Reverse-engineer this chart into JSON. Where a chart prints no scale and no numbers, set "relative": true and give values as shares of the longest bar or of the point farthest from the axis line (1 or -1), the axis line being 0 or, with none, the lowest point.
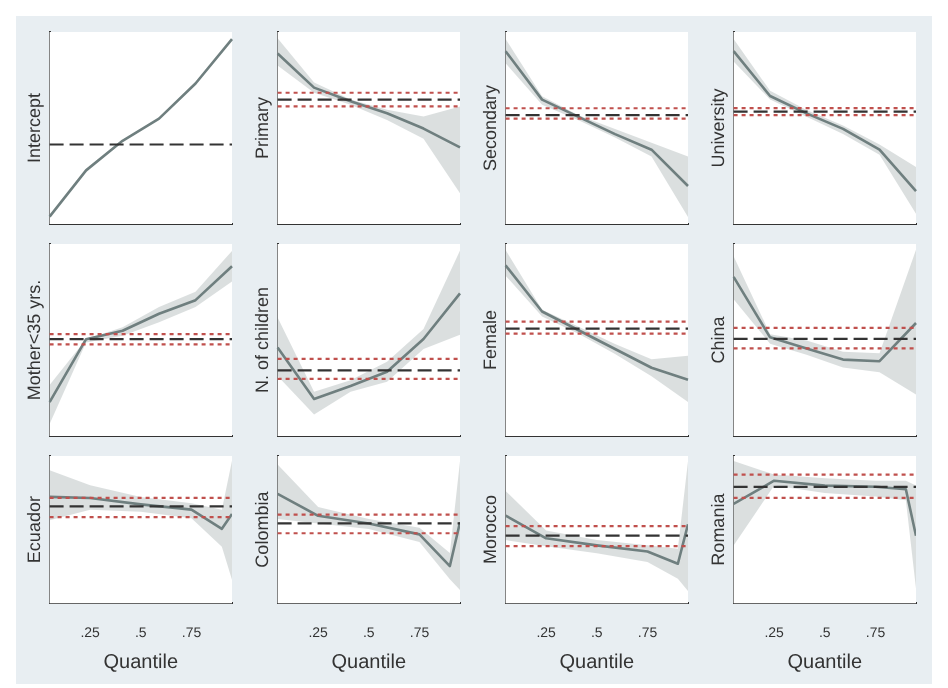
{
  "chart_data": [
    {
      "type": "line",
      "relative": true,
      "ylabel": "Intercept",
      "categories": [
        null,
        null,
        null,
        null,
        null,
        null
      ],
      "tick_labels": false,
      "series": [
        {
          "color": "#6f7f7f",
          "values": [
            0.04,
            0.29,
            0.45,
            0.57,
            0.76,
            1
          ]
        }
      ],
      "ref_lines": [
        {
          "axis": "y",
          "value": 0.43,
          "color": "#333333",
          "line_style": "dashed"
        }
      ]
    },
    {
      "type": "line",
      "relative": true,
      "ylabel": "Primary",
      "categories": [
        null,
        null,
        null,
        null,
        null,
        null
      ],
      "tick_labels": false,
      "series": [
        {
          "color": "#6f7f7f",
          "values": [
            1,
            0.8,
            0.72,
            0.65,
            0.56,
            0.45
          ],
          "lower": [
            0.93,
            0.77,
            0.7,
            0.61,
            0.5,
            0.18
          ],
          "upper": [
            1.09,
            0.83,
            0.73,
            0.67,
            0.63,
            0.69
          ]
        }
      ],
      "ref_lines": [
        {
          "axis": "y",
          "value": 0.73,
          "color": "#333333",
          "line_style": "dashed"
        },
        {
          "axis": "y",
          "value": 0.77,
          "color": "#c0504d",
          "line_style": "dotted"
        },
        {
          "axis": "y",
          "value": 0.69,
          "color": "#c0504d",
          "line_style": "dotted"
        }
      ]
    },
    {
      "type": "line",
      "relative": true,
      "ylabel": "Secondary",
      "categories": [
        null,
        null,
        null,
        null,
        null,
        null
      ],
      "tick_labels": false,
      "series": [
        {
          "color": "#6f7f7f",
          "values": [
            1,
            0.72,
            0.62,
            0.52,
            0.43,
            0.22
          ],
          "lower": [
            0.93,
            0.69,
            0.6,
            0.5,
            0.39,
            0.04
          ],
          "upper": [
            1.07,
            0.74,
            0.63,
            0.55,
            0.47,
            0.39
          ]
        }
      ],
      "ref_lines": [
        {
          "axis": "y",
          "value": 0.63,
          "color": "#333333",
          "line_style": "dashed"
        },
        {
          "axis": "y",
          "value": 0.67,
          "color": "#c0504d",
          "line_style": "dotted"
        },
        {
          "axis": "y",
          "value": 0.61,
          "color": "#c0504d",
          "line_style": "dotted"
        }
      ]
    },
    {
      "type": "line",
      "relative": true,
      "ylabel": "University",
      "categories": [
        null,
        null,
        null,
        null,
        null,
        null
      ],
      "tick_labels": false,
      "series": [
        {
          "color": "#6f7f7f",
          "values": [
            1,
            0.74,
            0.64,
            0.55,
            0.43,
            0.19
          ],
          "lower": [
            0.94,
            0.72,
            0.62,
            0.52,
            0.4,
            0.06
          ],
          "upper": [
            1.07,
            0.77,
            0.66,
            0.57,
            0.46,
            0.33
          ]
        }
      ],
      "ref_lines": [
        {
          "axis": "y",
          "value": 0.65,
          "color": "#333333",
          "line_style": "dashed"
        },
        {
          "axis": "y",
          "value": 0.67,
          "color": "#c0504d",
          "line_style": "dotted"
        },
        {
          "axis": "y",
          "value": 0.63,
          "color": "#c0504d",
          "line_style": "dotted"
        }
      ]
    },
    {
      "type": "line",
      "relative": true,
      "ylabel": "Mother<35 yrs.",
      "categories": [
        null,
        null,
        null,
        null,
        null,
        null
      ],
      "tick_labels": false,
      "series": [
        {
          "color": "#6f7f7f",
          "values": [
            0.2,
            0.57,
            0.62,
            0.72,
            0.8,
            1
          ],
          "lower": [
            0.07,
            0.55,
            0.59,
            0.67,
            0.76,
            0.91
          ],
          "upper": [
            0.3,
            0.57,
            0.64,
            0.76,
            0.85,
            1.09
          ]
        }
      ],
      "ref_lines": [
        {
          "axis": "y",
          "value": 0.57,
          "color": "#333333",
          "line_style": "dashed"
        },
        {
          "axis": "y",
          "value": 0.6,
          "color": "#c0504d",
          "line_style": "dotted"
        },
        {
          "axis": "y",
          "value": 0.54,
          "color": "#c0504d",
          "line_style": "dotted"
        }
      ]
    },
    {
      "type": "line",
      "relative": true,
      "ylabel": "N. of children",
      "categories": [
        null,
        null,
        null,
        null,
        null,
        null
      ],
      "tick_labels": false,
      "series": [
        {
          "color": "#6f7f7f",
          "values": [
            0.62,
            0.26,
            0.35,
            0.45,
            0.68,
            1
          ],
          "lower": [
            0.42,
            0.15,
            0.31,
            0.38,
            0.61,
            0.71
          ],
          "upper": [
            0.83,
            0.31,
            0.39,
            0.52,
            0.75,
            1.3
          ]
        }
      ],
      "ref_lines": [
        {
          "axis": "y",
          "value": 0.46,
          "color": "#333333",
          "line_style": "dashed"
        },
        {
          "axis": "y",
          "value": 0.54,
          "color": "#c0504d",
          "line_style": "dotted"
        },
        {
          "axis": "y",
          "value": 0.4,
          "color": "#c0504d",
          "line_style": "dotted"
        }
      ]
    },
    {
      "type": "line",
      "relative": true,
      "ylabel": "Female",
      "categories": [
        null,
        null,
        null,
        null,
        null,
        null
      ],
      "tick_labels": false,
      "series": [
        {
          "color": "#6f7f7f",
          "values": [
            1,
            0.73,
            0.62,
            0.51,
            0.4,
            0.33
          ],
          "lower": [
            0.94,
            0.7,
            0.6,
            0.48,
            0.35,
            0.2
          ],
          "upper": [
            1.09,
            0.74,
            0.64,
            0.54,
            0.45,
            0.47
          ]
        }
      ],
      "ref_lines": [
        {
          "axis": "y",
          "value": 0.63,
          "color": "#333333",
          "line_style": "dashed"
        },
        {
          "axis": "y",
          "value": 0.67,
          "color": "#c0504d",
          "line_style": "dotted"
        },
        {
          "axis": "y",
          "value": 0.6,
          "color": "#c0504d",
          "line_style": "dotted"
        }
      ]
    },
    {
      "type": "line",
      "relative": true,
      "ylabel": "China",
      "categories": [
        null,
        null,
        null,
        null,
        null,
        null
      ],
      "tick_labels": false,
      "series": [
        {
          "color": "#6f7f7f",
          "values": [
            1,
            0.62,
            0.55,
            0.48,
            0.47,
            0.71
          ],
          "lower": [
            0.86,
            0.58,
            0.51,
            0.43,
            0.4,
            0.26
          ],
          "upper": [
            1.13,
            0.64,
            0.6,
            0.53,
            0.52,
            1.17
          ]
        }
      ],
      "ref_lines": [
        {
          "axis": "y",
          "value": 0.61,
          "color": "#333333",
          "line_style": "dashed"
        },
        {
          "axis": "y",
          "value": 0.68,
          "color": "#c0504d",
          "line_style": "dotted"
        },
        {
          "axis": "y",
          "value": 0.55,
          "color": "#c0504d",
          "line_style": "dotted"
        }
      ]
    },
    {
      "type": "line",
      "relative": true,
      "ylabel": "Ecuador",
      "xlabel": "Quantile",
      "x": [
        0.05,
        0.25,
        0.5,
        0.75,
        0.9,
        0.95
      ],
      "xlim": [
        0.05,
        0.95
      ],
      "xticks": [
        {
          "value": 0.25,
          "label": ".25"
        },
        {
          "value": 0.5,
          "label": ".5"
        },
        {
          "value": 0.75,
          "label": ".75"
        }
      ],
      "tick_labels": "x",
      "series": [
        {
          "color": "#6f7f7f",
          "values": [
            1,
            0.99,
            0.93,
            0.88,
            0.7,
            0.84
          ],
          "lower": [
            0.78,
            0.88,
            0.86,
            0.8,
            0.53,
            0.22
          ],
          "upper": [
            1.25,
            1.11,
            1,
            0.94,
            0.88,
            1.34
          ]
        }
      ],
      "ref_lines": [
        {
          "axis": "y",
          "value": 0.91,
          "color": "#333333",
          "line_style": "dashed"
        },
        {
          "axis": "y",
          "value": 0.99,
          "color": "#c0504d",
          "line_style": "dotted"
        },
        {
          "axis": "y",
          "value": 0.81,
          "color": "#c0504d",
          "line_style": "dotted"
        }
      ]
    },
    {
      "type": "line",
      "relative": true,
      "ylabel": "Colombia",
      "xlabel": "Quantile",
      "x": [
        0.05,
        0.25,
        0.5,
        0.75,
        0.9,
        0.95
      ],
      "xlim": [
        0.05,
        0.95
      ],
      "xticks": [
        {
          "value": 0.25,
          "label": ".25"
        },
        {
          "value": 0.5,
          "label": ".5"
        },
        {
          "value": 0.75,
          "label": ".75"
        }
      ],
      "tick_labels": "x",
      "series": [
        {
          "color": "#6f7f7f",
          "values": [
            1,
            0.8,
            0.73,
            0.63,
            0.34,
            0.74
          ],
          "lower": [
            0.77,
            0.73,
            0.68,
            0.56,
            0.22,
            0.12
          ],
          "upper": [
            1.27,
            0.88,
            0.77,
            0.69,
            0.46,
            1.3
          ]
        }
      ],
      "ref_lines": [
        {
          "axis": "y",
          "value": 0.73,
          "color": "#333333",
          "line_style": "dashed"
        },
        {
          "axis": "y",
          "value": 0.81,
          "color": "#c0504d",
          "line_style": "dotted"
        },
        {
          "axis": "y",
          "value": 0.64,
          "color": "#c0504d",
          "line_style": "dotted"
        }
      ]
    },
    {
      "type": "line",
      "relative": true,
      "ylabel": "Morocco",
      "xlabel": "Quantile",
      "x": [
        0.05,
        0.25,
        0.5,
        0.75,
        0.9,
        0.95
      ],
      "xlim": [
        0.05,
        0.95
      ],
      "xticks": [
        {
          "value": 0.25,
          "label": ".25"
        },
        {
          "value": 0.5,
          "label": ".5"
        },
        {
          "value": 0.75,
          "label": ".75"
        }
      ],
      "tick_labels": "x",
      "series": [
        {
          "color": "#6f7f7f",
          "values": [
            1,
            0.74,
            0.66,
            0.59,
            0.45,
            0.9
          ],
          "lower": [
            0.72,
            0.65,
            0.57,
            0.47,
            0.28,
            0.14
          ],
          "upper": [
            1.28,
            0.83,
            0.72,
            0.66,
            0.62,
            1.62
          ]
        }
      ],
      "ref_lines": [
        {
          "axis": "y",
          "value": 0.77,
          "color": "#333333",
          "line_style": "dashed"
        },
        {
          "axis": "y",
          "value": 0.88,
          "color": "#c0504d",
          "line_style": "dotted"
        },
        {
          "axis": "y",
          "value": 0.65,
          "color": "#c0504d",
          "line_style": "dotted"
        }
      ]
    },
    {
      "type": "line",
      "relative": true,
      "ylabel": "Romania",
      "xlabel": "Quantile",
      "x": [
        0.05,
        0.25,
        0.5,
        0.75,
        0.9,
        0.95
      ],
      "xlim": [
        0.05,
        0.95
      ],
      "xticks": [
        {
          "value": 0.25,
          "label": ".25"
        },
        {
          "value": 0.5,
          "label": ".5"
        },
        {
          "value": 0.75,
          "label": ".75"
        }
      ],
      "tick_labels": "x",
      "series": [
        {
          "color": "#6f7f7f",
          "values": [
            0.81,
            1,
            0.96,
            0.95,
            0.93,
            0.55
          ],
          "lower": [
            0.47,
            0.96,
            0.9,
            0.87,
            0.84,
            0.12
          ],
          "upper": [
            1.16,
            1.05,
            1.02,
            1,
            1,
            0.96
          ]
        }
      ],
      "ref_lines": [
        {
          "axis": "y",
          "value": 0.95,
          "color": "#333333",
          "line_style": "dashed"
        },
        {
          "axis": "y",
          "value": 1.05,
          "color": "#c0504d",
          "line_style": "dotted"
        },
        {
          "axis": "y",
          "value": 0.86,
          "color": "#c0504d",
          "line_style": "dotted"
        }
      ]
    }
  ]
}
